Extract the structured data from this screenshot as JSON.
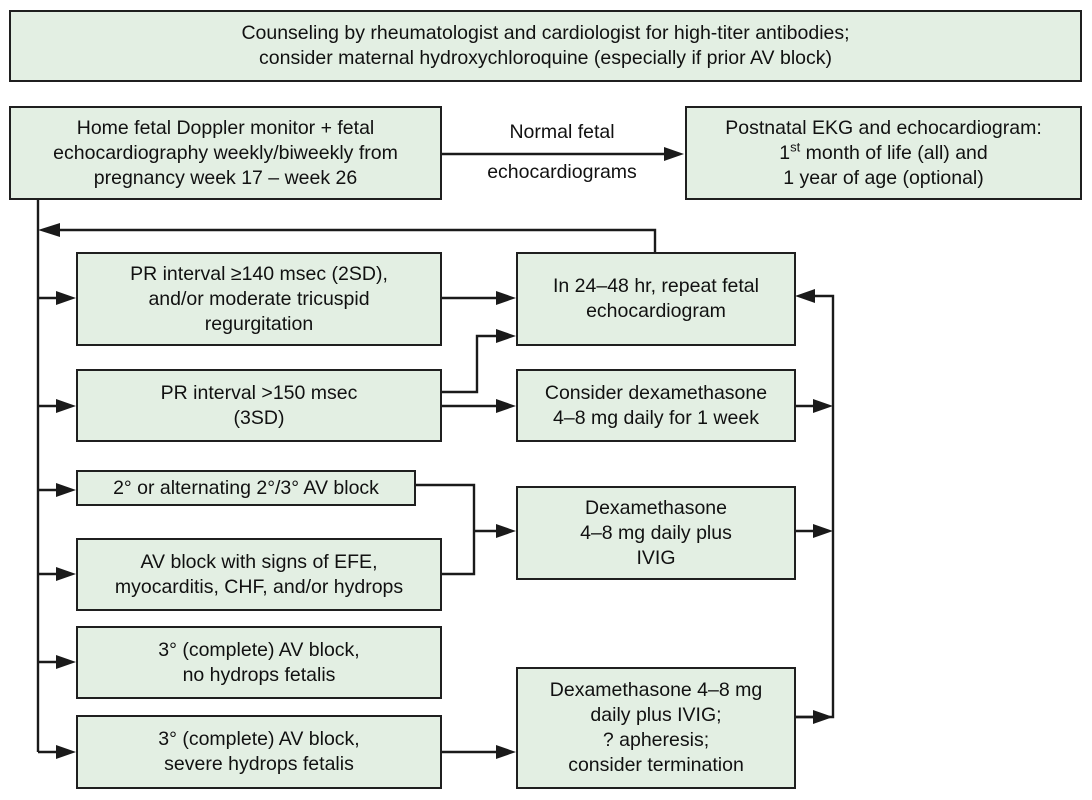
{
  "boxes": {
    "counseling": {
      "line1": "Counseling by rheumatologist and cardiologist for high-titer antibodies;",
      "line2": "consider maternal hydroxychloroquine (especially if prior AV block)"
    },
    "monitoring": {
      "line1": "Home fetal Doppler monitor + fetal",
      "line2": "echocardiography weekly/biweekly from",
      "line3": "pregnancy week 17 – week 26"
    },
    "postnatal": {
      "line1": "Postnatal EKG and echocardiogram:",
      "line2_num": "1",
      "line2_sup": "st",
      "line2_rest": " month of life (all) and",
      "line3": "1 year of age (optional)"
    },
    "pr140": {
      "line1": "PR interval ≥140 msec (2SD),",
      "line2": "and/or moderate tricuspid",
      "line3": "regurgitation"
    },
    "repeat_echo": {
      "line1": "In 24–48 hr, repeat fetal",
      "line2": "echocardiogram"
    },
    "pr150": {
      "line1": "PR interval >150 msec",
      "line2": "(3SD)"
    },
    "consider_dex": {
      "line1": "Consider dexamethasone",
      "line2": "4–8 mg daily for 1 week"
    },
    "second_degree": {
      "line1": "2° or alternating 2°/3° AV block"
    },
    "dex_ivig": {
      "line1": "Dexamethasone",
      "line2": "4–8 mg daily plus",
      "line3": "IVIG"
    },
    "av_efe": {
      "line1": "AV block with signs of EFE,",
      "line2": "myocarditis, CHF, and/or hydrops"
    },
    "complete_no_hydrops": {
      "line1": "3° (complete) AV block,",
      "line2": "no hydrops fetalis"
    },
    "complete_severe": {
      "line1": "3° (complete) AV block,",
      "line2": "severe hydrops fetalis"
    },
    "dex_apheresis": {
      "line1": "Dexamethasone 4–8 mg",
      "line2": "daily plus IVIG;",
      "line3": "? apheresis;",
      "line4": "consider termination"
    }
  },
  "edge_labels": {
    "normal_line1": "Normal fetal",
    "normal_line2": "echocardiograms"
  },
  "colors": {
    "box_fill": "#e3efe3",
    "border": "#1f1f1f",
    "arrow": "#1a1a1a"
  }
}
